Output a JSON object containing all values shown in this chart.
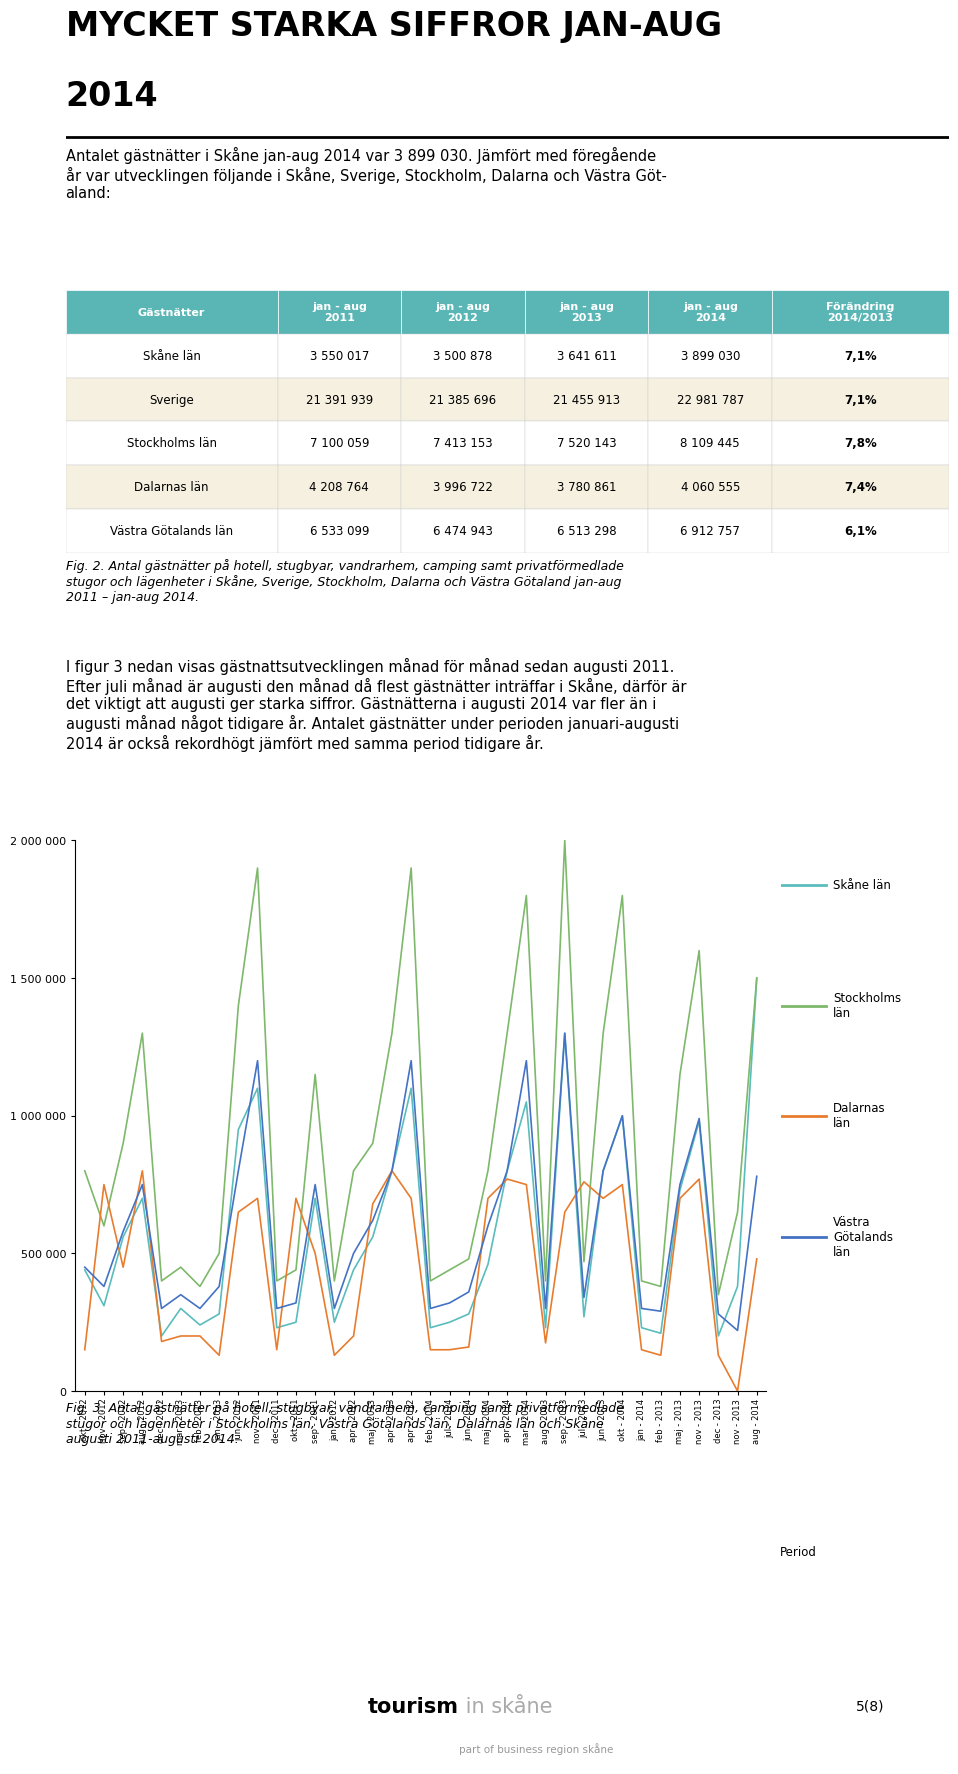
{
  "title_line1": "MYCKET STARKA SIFFROR JAN-AUG",
  "title_line2": "2014",
  "intro_text_parts": [
    {
      "text": "Antalet gästnätter",
      "bold": true
    },
    {
      "text": " i Skåne ",
      "bold": false
    },
    {
      "text": "jan-aug 2014",
      "bold": true
    },
    {
      "text": " var ",
      "bold": false
    },
    {
      "text": "3 899 030",
      "bold": true
    },
    {
      "text": ". Jämfört med föregående\når var utvecklingen följande i Skåne, Sverige, Stockholm, Dalarna och Västra Göt-\naland:",
      "bold": false
    }
  ],
  "table_header_color": "#5ab5b5",
  "table_header_text_color": "#ffffff",
  "table_row1_color": "#ffffff",
  "table_row2_color": "#f5f0e0",
  "table_headers": [
    "Gästnätter",
    "jan - aug\n2011",
    "jan - aug\n2012",
    "jan - aug\n2013",
    "jan - aug\n2014",
    "Förändring\n2014/2013"
  ],
  "table_rows": [
    [
      "Skåne län",
      "3 550 017",
      "3 500 878",
      "3 641 611",
      "3 899 030",
      "7,1%"
    ],
    [
      "Sverige",
      "21 391 939",
      "21 385 696",
      "21 455 913",
      "22 981 787",
      "7,1%"
    ],
    [
      "Stockholms län",
      "7 100 059",
      "7 413 153",
      "7 520 143",
      "8 109 445",
      "7,8%"
    ],
    [
      "Dalarnas län",
      "4 208 764",
      "3 996 722",
      "3 780 861",
      "4 060 555",
      "7,4%"
    ],
    [
      "Västra Götalands län",
      "6 533 099",
      "6 474 943",
      "6 513 298",
      "6 912 757",
      "6,1%"
    ]
  ],
  "fig2_caption": "Fig. 2. Antal gästnätter på hotell, stugbyar, vandrarhem, camping samt privatförmedlade\nstugor och lägenheter i Skåne, Sverige, Stockholm, Dalarna och Västra Götaland jan-aug\n2011 – jan-aug 2014.",
  "body_text1": "I figur 3 nedan visas gästnattsutvecklingen månad för månad sedan augusti 2011.\nEfter juli månad är augusti den månad då flest gästnätter inträffar i Skåne, därför är\ndet viktigt att augusti ger starka siffror. Gästnätterna i augusti 2014 var fler än i\naugusti månad något tidigare år. Antalet gästnätter under perioden januari-augusti\n2014 är också rekordhögt jämfört med samma period tidigare år.",
  "chart_xlabel": "Period",
  "chart_ylim": [
    0,
    2000000
  ],
  "chart_yticks": [
    0,
    500000,
    1000000,
    1500000,
    2000000
  ],
  "chart_ytick_labels": [
    "0",
    "500 000",
    "1 000 000",
    "1 500 000",
    "2 000 000"
  ],
  "legend_labels": [
    "Skåne län",
    "Stockholms\nlän",
    "Dalarnas\nlän",
    "Västra\nGötalands\nlän"
  ],
  "line_colors": [
    "#5abcbc",
    "#7db86b",
    "#e87c2e",
    "#4472c4"
  ],
  "x_labels": [
    "okt - 2012",
    "nov - 2012",
    "sep - 2012",
    "aug - 2012",
    "dec - 2012",
    "mar - 2013",
    "feb - 2013",
    "jan - 2013",
    "jun - 2012",
    "nov - 2011",
    "dec - 2011",
    "okt - 2011",
    "sep - 2011",
    "jan - 2012",
    "apr - 2012",
    "maj - 2013",
    "apr - 2013",
    "apr - 2012",
    "feb - 2014",
    "jul - 2014",
    "jun - 2014",
    "maj - 2014",
    "apr - 2014",
    "mar - 2014",
    "aug - 2013",
    "sep - 2013",
    "jul - 2013",
    "jun - 2013",
    "okt - 2014",
    "jan - 2014",
    "feb - 2013",
    "maj - 2013",
    "nov - 2013",
    "dec - 2013",
    "nov - 2013",
    "aug - 2014"
  ],
  "skane_data": [
    440000,
    310000,
    560000,
    700000,
    200000,
    300000,
    240000,
    280000,
    950000,
    1100000,
    230000,
    250000,
    700000,
    250000,
    440000,
    560000,
    800000,
    1100000,
    230000,
    250000,
    280000,
    460000,
    800000,
    1050000,
    230000,
    1300000,
    270000,
    800000,
    1000000,
    230000,
    210000,
    730000,
    980000,
    200000,
    380000,
    1500000
  ],
  "stockholm_data": [
    800000,
    600000,
    900000,
    1300000,
    400000,
    450000,
    380000,
    500000,
    1400000,
    1900000,
    400000,
    440000,
    1150000,
    400000,
    800000,
    900000,
    1300000,
    1900000,
    400000,
    440000,
    480000,
    800000,
    1300000,
    1800000,
    400000,
    2000000,
    470000,
    1300000,
    1800000,
    400000,
    380000,
    1150000,
    1600000,
    350000,
    650000,
    1500000
  ],
  "dalarna_data": [
    150000,
    750000,
    450000,
    800000,
    180000,
    200000,
    200000,
    130000,
    650000,
    700000,
    150000,
    700000,
    500000,
    130000,
    200000,
    680000,
    800000,
    700000,
    150000,
    150000,
    160000,
    700000,
    770000,
    750000,
    175000,
    650000,
    760000,
    700000,
    750000,
    150000,
    130000,
    700000,
    770000,
    130000,
    0,
    480000
  ],
  "vastragotaland_data": [
    450000,
    380000,
    580000,
    750000,
    300000,
    350000,
    300000,
    380000,
    800000,
    1200000,
    300000,
    320000,
    750000,
    300000,
    500000,
    620000,
    800000,
    1200000,
    300000,
    320000,
    360000,
    600000,
    800000,
    1200000,
    300000,
    1300000,
    340000,
    800000,
    1000000,
    300000,
    290000,
    750000,
    990000,
    280000,
    220000,
    780000
  ],
  "fig3_caption": "Fig. 3. Antal gästnätter på hotell, stugbyar, vandrarhem, camping samt privatförmedlade\nstugor och lägenheter i Stockholms län, Västra Götalands län, Dalarnas län och Skåne\naugusti 2011-augusti 2014.",
  "footer_text_bold": "tourism",
  "footer_text_regular": " in skåne",
  "footer_subtext": "part of business region skåne",
  "page_number": "5(8)"
}
